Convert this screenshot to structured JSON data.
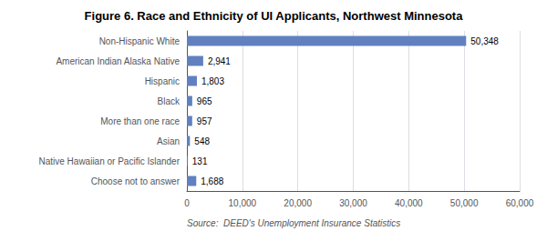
{
  "chart_data": {
    "type": "bar",
    "orientation": "horizontal",
    "title": "Figure 6. Race and Ethnicity of UI Applicants, Northwest Minnesota",
    "categories": [
      "Choose not to answer",
      "Native Hawaiian or Pacific Islander",
      "Asian",
      "More than one race",
      "Black",
      "Hispanic",
      "American Indian Alaska Native",
      "Non-Hispanic White"
    ],
    "values": [
      1688,
      131,
      548,
      957,
      965,
      1803,
      2941,
      50348
    ],
    "value_labels": [
      "1,688",
      "131",
      "548",
      "957",
      "965",
      "1,803",
      "2,941",
      "50,348"
    ],
    "data_labels": true,
    "color": "#6080c0",
    "xlim": [
      0,
      60000
    ],
    "xticks": [
      0,
      {
        "value": 10000,
        "label": "10,000"
      },
      {
        "value": 20000,
        "label": "20,000"
      },
      {
        "value": 30000,
        "label": "30,000"
      },
      {
        "value": 40000,
        "label": "40,000"
      },
      {
        "value": 50000,
        "label": "50,000"
      },
      {
        "value": 60000,
        "label": "60,000"
      }
    ],
    "grid": true,
    "annotations": [
      "Source:  DEED's Unemployment Insurance Statistics"
    ]
  }
}
